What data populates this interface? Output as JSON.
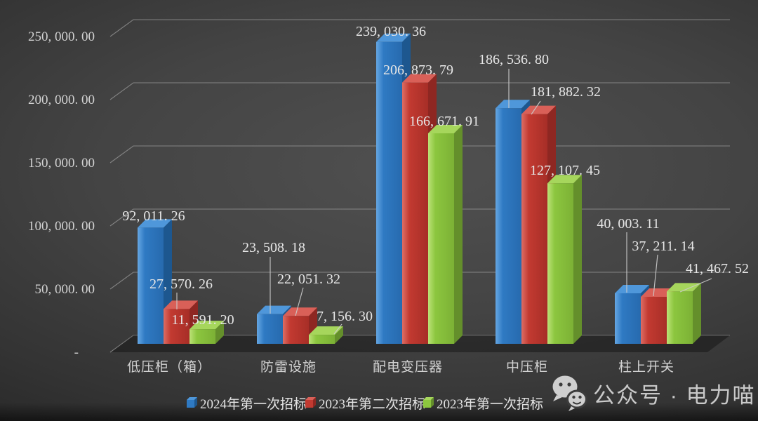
{
  "chart_data": {
    "type": "bar",
    "style": "3d-clustered-column",
    "title": "",
    "categories": [
      "低压柜（箱）",
      "防雷设施",
      "配电变压器",
      "中压柜",
      "柱上开关"
    ],
    "series": [
      {
        "name": "2024年第一次招标",
        "color": "#2f7ac3",
        "values": [
          92011.26,
          23508.18,
          239030.36,
          186536.8,
          40003.11
        ]
      },
      {
        "name": "2023年第二次招标",
        "color": "#c23a31",
        "values": [
          27570.26,
          22051.32,
          206873.79,
          181882.32,
          37211.14
        ]
      },
      {
        "name": "2023年第一次招标",
        "color": "#8cc63f",
        "values": [
          11591.2,
          7156.3,
          166671.91,
          127107.45,
          41467.52
        ]
      }
    ],
    "ylim": [
      0,
      250000
    ],
    "y_tick_step": 50000,
    "y_tick_labels": [
      "-",
      "50, 000. 00",
      "100, 000. 00",
      "150, 000. 00",
      "200, 000. 00",
      "250, 000. 00"
    ],
    "grid": true,
    "data_labels": true,
    "legend_position": "bottom"
  },
  "colors": {
    "background_center": "#4d4d4d",
    "background_edge": "#1a1a1a",
    "grid_line": "#a6a6a6",
    "axis_text": "#d2d2d2",
    "label_text": "#e6e6e6",
    "leader_line": "#cccccc",
    "series_blue": {
      "front": "#2f7ac3",
      "top": "#4f97da",
      "side": "#1d578f",
      "highlight": "#66a7e3",
      "shade": "#276aae"
    },
    "series_red": {
      "front": "#c23a31",
      "top": "#d96058",
      "side": "#8e2722",
      "highlight": "#dd6d64",
      "shade": "#a72e27"
    },
    "series_green": {
      "front": "#8cc63f",
      "top": "#a6d65c",
      "side": "#648f2b",
      "highlight": "#bce277",
      "shade": "#7cb135"
    }
  },
  "watermark": {
    "icon": "wechat-icon",
    "text": "公众号 · 电力喵"
  }
}
